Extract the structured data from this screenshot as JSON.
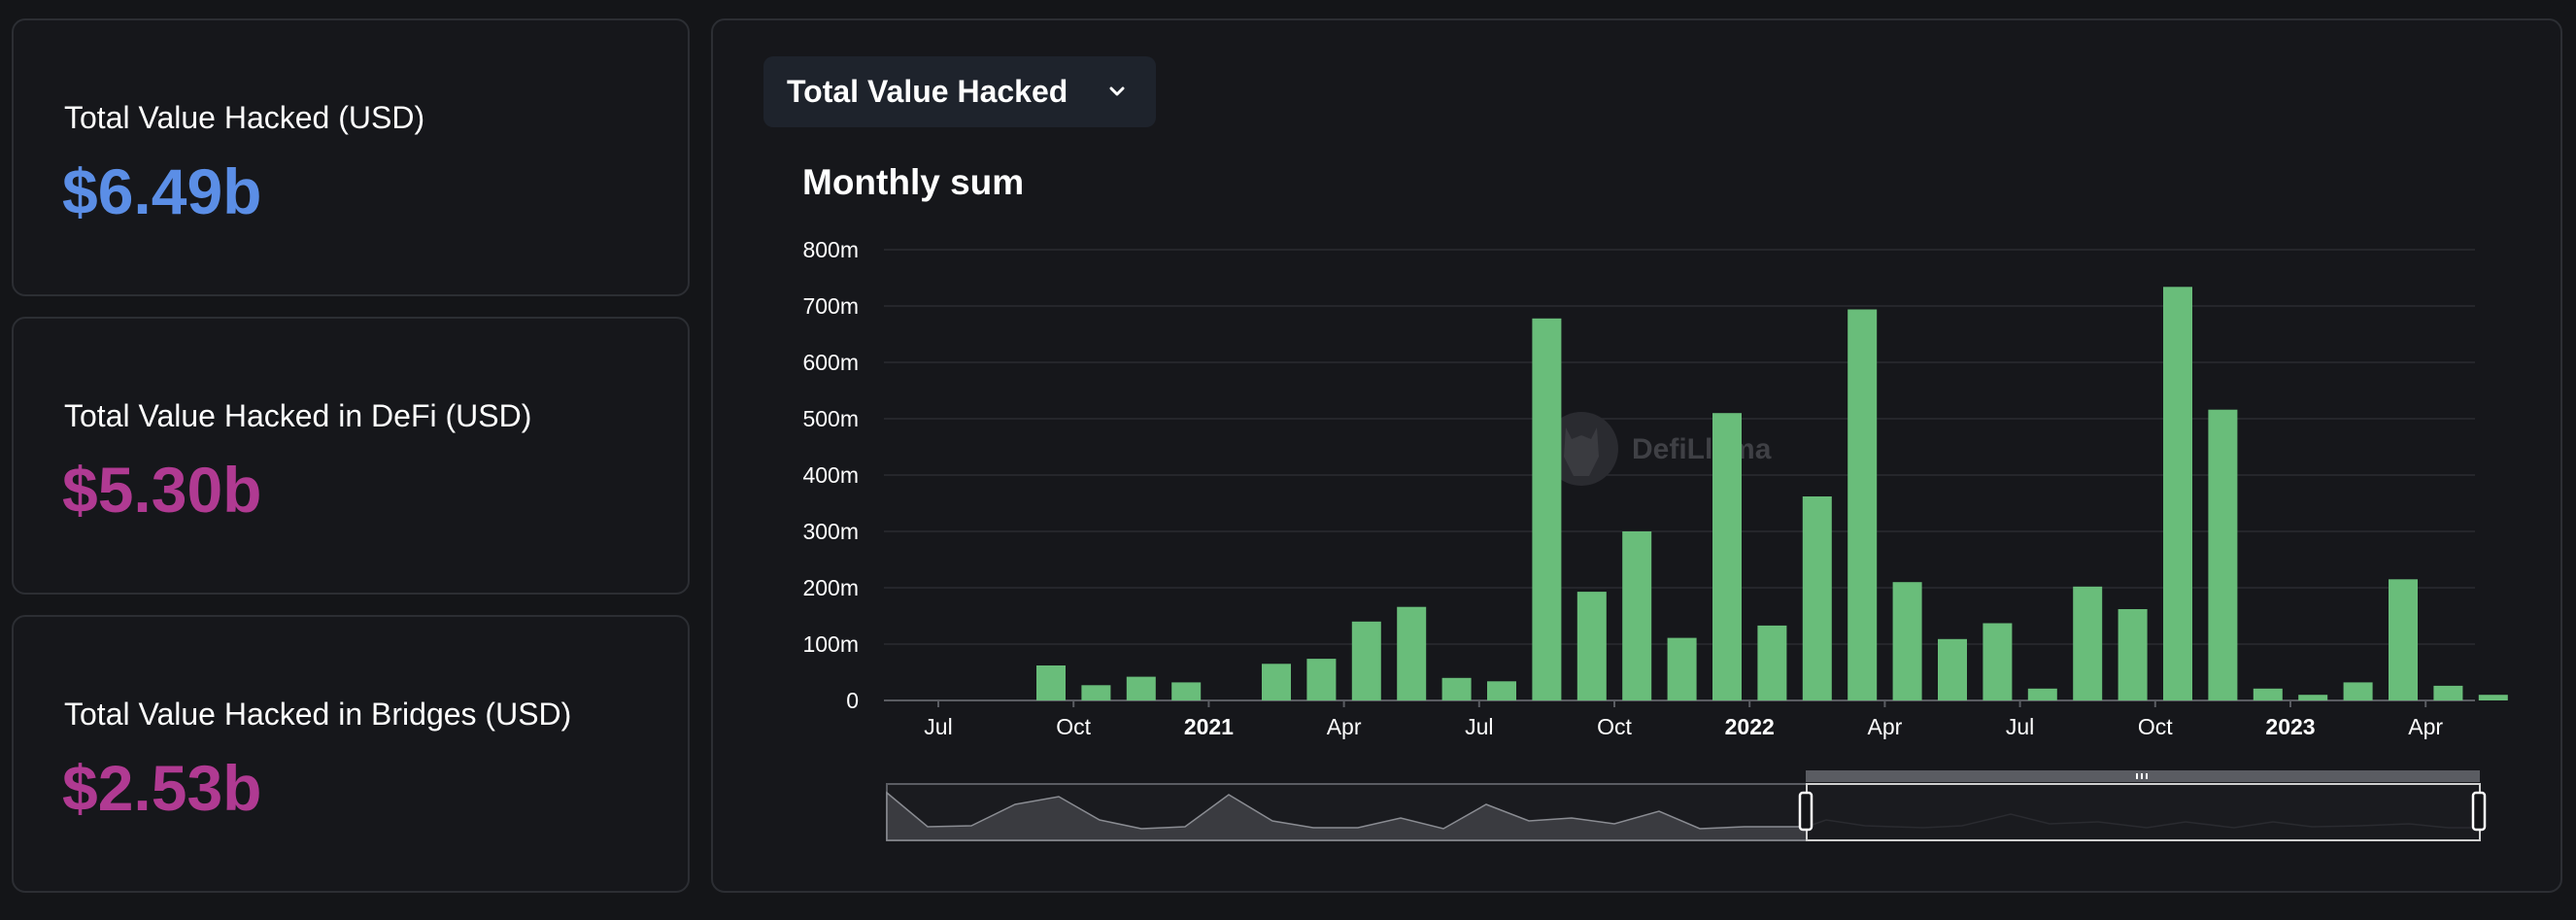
{
  "stats": [
    {
      "label": "Total Value Hacked (USD)",
      "value": "$6.49b",
      "color": "#5b8ee6"
    },
    {
      "label": "Total Value Hacked in DeFi (USD)",
      "value": "$5.30b",
      "color": "#b03a92"
    },
    {
      "label": "Total Value Hacked in Bridges (USD)",
      "value": "$2.53b",
      "color": "#b03a92"
    }
  ],
  "dropdown": {
    "label": "Total Value Hacked",
    "icon": "chevron-down-icon"
  },
  "watermark": {
    "text": "DefiLlama"
  },
  "chart_data": {
    "type": "bar",
    "title": "Monthly sum",
    "xlabel": "",
    "ylabel": "",
    "ylim": [
      0,
      800
    ],
    "y_ticks": [
      "0",
      "100m",
      "200m",
      "300m",
      "400m",
      "500m",
      "600m",
      "700m",
      "800m"
    ],
    "x_ticks": [
      {
        "label": "Jul",
        "month": "2020-07",
        "bold": false
      },
      {
        "label": "Oct",
        "month": "2020-10",
        "bold": false
      },
      {
        "label": "2021",
        "month": "2021-01",
        "bold": true
      },
      {
        "label": "Apr",
        "month": "2021-04",
        "bold": false
      },
      {
        "label": "Jul",
        "month": "2021-07",
        "bold": false
      },
      {
        "label": "Oct",
        "month": "2021-10",
        "bold": false
      },
      {
        "label": "2022",
        "month": "2022-01",
        "bold": true
      },
      {
        "label": "Apr",
        "month": "2022-04",
        "bold": false
      },
      {
        "label": "Jul",
        "month": "2022-07",
        "bold": false
      },
      {
        "label": "Oct",
        "month": "2022-10",
        "bold": false
      },
      {
        "label": "2023",
        "month": "2023-01",
        "bold": true
      },
      {
        "label": "Apr",
        "month": "2023-04",
        "bold": false
      }
    ],
    "bar_color": "#69bd7a",
    "grid": true,
    "categories": [
      "2020-09",
      "2020-10",
      "2020-11",
      "2020-12",
      "2021-01",
      "2021-02",
      "2021-03",
      "2021-04",
      "2021-05",
      "2021-06",
      "2021-07",
      "2021-08",
      "2021-09",
      "2021-10",
      "2021-11",
      "2021-12",
      "2022-01",
      "2022-02",
      "2022-03",
      "2022-04",
      "2022-05",
      "2022-06",
      "2022-07",
      "2022-08",
      "2022-09",
      "2022-10",
      "2022-11",
      "2022-12",
      "2023-01",
      "2023-02",
      "2023-03",
      "2023-04",
      "2023-05"
    ],
    "values": [
      62,
      27,
      42,
      32,
      0,
      65,
      74,
      140,
      166,
      40,
      34,
      678,
      193,
      300,
      111,
      510,
      133,
      362,
      694,
      210,
      109,
      137,
      21,
      202,
      162,
      734,
      516,
      21,
      10,
      32,
      215,
      26,
      10
    ]
  }
}
